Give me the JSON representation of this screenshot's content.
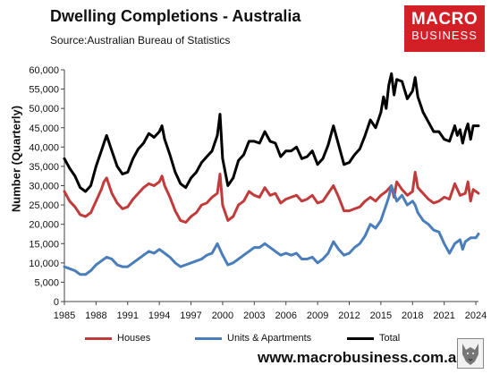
{
  "title": "Dwelling Completions - Australia",
  "source": "Source:Australian Bureau of Statistics",
  "brand": {
    "top": "MACRO",
    "bottom": "BUSINESS"
  },
  "website": "www.macrobusiness.com.au",
  "colors": {
    "houses": "#c23b3b",
    "units": "#4a7ebb",
    "total": "#000000",
    "brand": "#d32027"
  },
  "chart_data": {
    "type": "line",
    "title": "Dwelling Completions - Australia",
    "xlabel": "",
    "ylabel": "Number (Quarterly)",
    "xlim": [
      1985,
      2024.25
    ],
    "ylim": [
      0,
      60000
    ],
    "x_ticks": [
      "1985",
      "1988",
      "1991",
      "1994",
      "1997",
      "2000",
      "2003",
      "2006",
      "2009",
      "2012",
      "2015",
      "2018",
      "2021",
      "2024"
    ],
    "y_ticks": [
      "0",
      "5,000",
      "10,000",
      "15,000",
      "20,000",
      "25,000",
      "30,000",
      "35,000",
      "40,000",
      "45,000",
      "50,000",
      "55,000",
      "60,000"
    ],
    "grid": false,
    "legend": "bottom",
    "frequency": "quarterly",
    "series": [
      {
        "name": "Houses",
        "color": "#c23b3b",
        "points": [
          [
            1985.0,
            28500
          ],
          [
            1985.5,
            26000
          ],
          [
            1986.0,
            24500
          ],
          [
            1986.5,
            22500
          ],
          [
            1987.0,
            22000
          ],
          [
            1987.5,
            23000
          ],
          [
            1988.0,
            26000
          ],
          [
            1988.5,
            29000
          ],
          [
            1988.75,
            31000
          ],
          [
            1989.0,
            32000
          ],
          [
            1989.5,
            28000
          ],
          [
            1990.0,
            25500
          ],
          [
            1990.5,
            24000
          ],
          [
            1991.0,
            24500
          ],
          [
            1991.5,
            26500
          ],
          [
            1992.0,
            28000
          ],
          [
            1992.5,
            29500
          ],
          [
            1993.0,
            30500
          ],
          [
            1993.5,
            30000
          ],
          [
            1994.0,
            31000
          ],
          [
            1994.25,
            32500
          ],
          [
            1994.5,
            30000
          ],
          [
            1995.0,
            27000
          ],
          [
            1995.5,
            23500
          ],
          [
            1996.0,
            21000
          ],
          [
            1996.5,
            20500
          ],
          [
            1997.0,
            22000
          ],
          [
            1997.5,
            23000
          ],
          [
            1998.0,
            25000
          ],
          [
            1998.5,
            25500
          ],
          [
            1999.0,
            27000
          ],
          [
            1999.5,
            28000
          ],
          [
            1999.75,
            33000
          ],
          [
            2000.0,
            25000
          ],
          [
            2000.5,
            21000
          ],
          [
            2001.0,
            22000
          ],
          [
            2001.5,
            25000
          ],
          [
            2002.0,
            26000
          ],
          [
            2002.5,
            28500
          ],
          [
            2003.0,
            27500
          ],
          [
            2003.5,
            27000
          ],
          [
            2004.0,
            29500
          ],
          [
            2004.5,
            27500
          ],
          [
            2005.0,
            28000
          ],
          [
            2005.5,
            25500
          ],
          [
            2006.0,
            26500
          ],
          [
            2006.5,
            27000
          ],
          [
            2007.0,
            27500
          ],
          [
            2007.5,
            26000
          ],
          [
            2008.0,
            26500
          ],
          [
            2008.5,
            27500
          ],
          [
            2009.0,
            25500
          ],
          [
            2009.5,
            26000
          ],
          [
            2010.0,
            28000
          ],
          [
            2010.5,
            30000
          ],
          [
            2011.0,
            27000
          ],
          [
            2011.5,
            23500
          ],
          [
            2012.0,
            23500
          ],
          [
            2012.5,
            24000
          ],
          [
            2013.0,
            24500
          ],
          [
            2013.5,
            26000
          ],
          [
            2014.0,
            27000
          ],
          [
            2014.5,
            26000
          ],
          [
            2015.0,
            27500
          ],
          [
            2015.5,
            28500
          ],
          [
            2016.0,
            30000
          ],
          [
            2016.25,
            27000
          ],
          [
            2016.5,
            31000
          ],
          [
            2017.0,
            29000
          ],
          [
            2017.5,
            27500
          ],
          [
            2018.0,
            28500
          ],
          [
            2018.25,
            33500
          ],
          [
            2018.5,
            29500
          ],
          [
            2019.0,
            28000
          ],
          [
            2019.5,
            26500
          ],
          [
            2020.0,
            25500
          ],
          [
            2020.5,
            26000
          ],
          [
            2021.0,
            27000
          ],
          [
            2021.5,
            26500
          ],
          [
            2022.0,
            30500
          ],
          [
            2022.5,
            27500
          ],
          [
            2023.0,
            28000
          ],
          [
            2023.25,
            31000
          ],
          [
            2023.5,
            26000
          ],
          [
            2023.75,
            29000
          ],
          [
            2024.25,
            28000
          ]
        ]
      },
      {
        "name": "Units & Apartments",
        "color": "#4a7ebb",
        "points": [
          [
            1985.0,
            9000
          ],
          [
            1985.5,
            8500
          ],
          [
            1986.0,
            8000
          ],
          [
            1986.5,
            7000
          ],
          [
            1987.0,
            7000
          ],
          [
            1987.5,
            8000
          ],
          [
            1988.0,
            9500
          ],
          [
            1988.5,
            10500
          ],
          [
            1989.0,
            11500
          ],
          [
            1989.5,
            11000
          ],
          [
            1990.0,
            9500
          ],
          [
            1990.5,
            9000
          ],
          [
            1991.0,
            9000
          ],
          [
            1991.5,
            10000
          ],
          [
            1992.0,
            11000
          ],
          [
            1992.5,
            12000
          ],
          [
            1993.0,
            13000
          ],
          [
            1993.5,
            12500
          ],
          [
            1994.0,
            13500
          ],
          [
            1994.5,
            12500
          ],
          [
            1995.0,
            11500
          ],
          [
            1995.5,
            10000
          ],
          [
            1996.0,
            9000
          ],
          [
            1996.5,
            9500
          ],
          [
            1997.0,
            10000
          ],
          [
            1997.5,
            10500
          ],
          [
            1998.0,
            11000
          ],
          [
            1998.5,
            12000
          ],
          [
            1999.0,
            12500
          ],
          [
            1999.5,
            15000
          ],
          [
            2000.0,
            12000
          ],
          [
            2000.5,
            9500
          ],
          [
            2001.0,
            10000
          ],
          [
            2001.5,
            11000
          ],
          [
            2002.0,
            12000
          ],
          [
            2002.5,
            13000
          ],
          [
            2003.0,
            14000
          ],
          [
            2003.5,
            14000
          ],
          [
            2004.0,
            15000
          ],
          [
            2004.5,
            14000
          ],
          [
            2005.0,
            13000
          ],
          [
            2005.5,
            12000
          ],
          [
            2006.0,
            12500
          ],
          [
            2006.5,
            12000
          ],
          [
            2007.0,
            12500
          ],
          [
            2007.5,
            11000
          ],
          [
            2008.0,
            11000
          ],
          [
            2008.5,
            11500
          ],
          [
            2009.0,
            10000
          ],
          [
            2009.5,
            11000
          ],
          [
            2010.0,
            12500
          ],
          [
            2010.5,
            15500
          ],
          [
            2011.0,
            13500
          ],
          [
            2011.5,
            12000
          ],
          [
            2012.0,
            12500
          ],
          [
            2012.5,
            14000
          ],
          [
            2013.0,
            15000
          ],
          [
            2013.5,
            17000
          ],
          [
            2014.0,
            20000
          ],
          [
            2014.5,
            19000
          ],
          [
            2015.0,
            21000
          ],
          [
            2015.5,
            25000
          ],
          [
            2015.75,
            27000
          ],
          [
            2016.0,
            30000
          ],
          [
            2016.5,
            26000
          ],
          [
            2017.0,
            27500
          ],
          [
            2017.5,
            25000
          ],
          [
            2018.0,
            26000
          ],
          [
            2018.25,
            25000
          ],
          [
            2018.5,
            23000
          ],
          [
            2019.0,
            21000
          ],
          [
            2019.5,
            20000
          ],
          [
            2020.0,
            18500
          ],
          [
            2020.5,
            18000
          ],
          [
            2021.0,
            15000
          ],
          [
            2021.5,
            12500
          ],
          [
            2022.0,
            15000
          ],
          [
            2022.5,
            16000
          ],
          [
            2022.75,
            13500
          ],
          [
            2023.0,
            15500
          ],
          [
            2023.5,
            16500
          ],
          [
            2024.0,
            16500
          ],
          [
            2024.25,
            17500
          ]
        ]
      },
      {
        "name": "Total",
        "color": "#000000",
        "points": [
          [
            1985.0,
            37000
          ],
          [
            1985.5,
            34500
          ],
          [
            1986.0,
            32500
          ],
          [
            1986.5,
            29500
          ],
          [
            1987.0,
            28500
          ],
          [
            1987.5,
            30000
          ],
          [
            1988.0,
            35000
          ],
          [
            1988.5,
            39000
          ],
          [
            1988.75,
            41000
          ],
          [
            1989.0,
            43000
          ],
          [
            1989.5,
            39000
          ],
          [
            1990.0,
            35000
          ],
          [
            1990.5,
            33000
          ],
          [
            1991.0,
            33500
          ],
          [
            1991.5,
            37000
          ],
          [
            1992.0,
            39500
          ],
          [
            1992.5,
            41000
          ],
          [
            1993.0,
            43500
          ],
          [
            1993.5,
            42500
          ],
          [
            1994.0,
            44000
          ],
          [
            1994.25,
            45500
          ],
          [
            1994.5,
            42000
          ],
          [
            1995.0,
            38000
          ],
          [
            1995.5,
            33500
          ],
          [
            1996.0,
            30500
          ],
          [
            1996.5,
            29500
          ],
          [
            1997.0,
            32000
          ],
          [
            1997.5,
            33500
          ],
          [
            1998.0,
            36000
          ],
          [
            1998.5,
            37500
          ],
          [
            1999.0,
            39000
          ],
          [
            1999.5,
            43000
          ],
          [
            1999.75,
            48500
          ],
          [
            2000.0,
            37000
          ],
          [
            2000.5,
            30000
          ],
          [
            2001.0,
            32000
          ],
          [
            2001.5,
            36500
          ],
          [
            2002.0,
            38000
          ],
          [
            2002.5,
            41500
          ],
          [
            2003.0,
            41500
          ],
          [
            2003.5,
            41000
          ],
          [
            2004.0,
            44000
          ],
          [
            2004.5,
            41500
          ],
          [
            2005.0,
            41000
          ],
          [
            2005.5,
            37500
          ],
          [
            2006.0,
            39000
          ],
          [
            2006.5,
            39000
          ],
          [
            2007.0,
            40000
          ],
          [
            2007.5,
            37000
          ],
          [
            2008.0,
            37500
          ],
          [
            2008.5,
            39000
          ],
          [
            2009.0,
            35500
          ],
          [
            2009.5,
            37000
          ],
          [
            2010.0,
            40500
          ],
          [
            2010.5,
            45500
          ],
          [
            2011.0,
            40500
          ],
          [
            2011.5,
            35500
          ],
          [
            2012.0,
            36000
          ],
          [
            2012.5,
            38000
          ],
          [
            2013.0,
            39500
          ],
          [
            2013.5,
            43000
          ],
          [
            2014.0,
            47000
          ],
          [
            2014.5,
            45000
          ],
          [
            2015.0,
            49000
          ],
          [
            2015.25,
            53000
          ],
          [
            2015.5,
            50000
          ],
          [
            2015.75,
            56000
          ],
          [
            2016.0,
            59000
          ],
          [
            2016.25,
            53500
          ],
          [
            2016.5,
            57500
          ],
          [
            2017.0,
            57000
          ],
          [
            2017.5,
            52500
          ],
          [
            2018.0,
            54500
          ],
          [
            2018.25,
            58000
          ],
          [
            2018.5,
            53000
          ],
          [
            2019.0,
            49000
          ],
          [
            2019.5,
            46500
          ],
          [
            2020.0,
            44000
          ],
          [
            2020.5,
            44000
          ],
          [
            2021.0,
            42000
          ],
          [
            2021.5,
            41500
          ],
          [
            2022.0,
            45500
          ],
          [
            2022.25,
            43000
          ],
          [
            2022.5,
            44500
          ],
          [
            2022.75,
            41000
          ],
          [
            2023.0,
            44000
          ],
          [
            2023.25,
            46000
          ],
          [
            2023.5,
            42000
          ],
          [
            2023.75,
            45500
          ],
          [
            2024.25,
            45500
          ]
        ]
      }
    ]
  }
}
